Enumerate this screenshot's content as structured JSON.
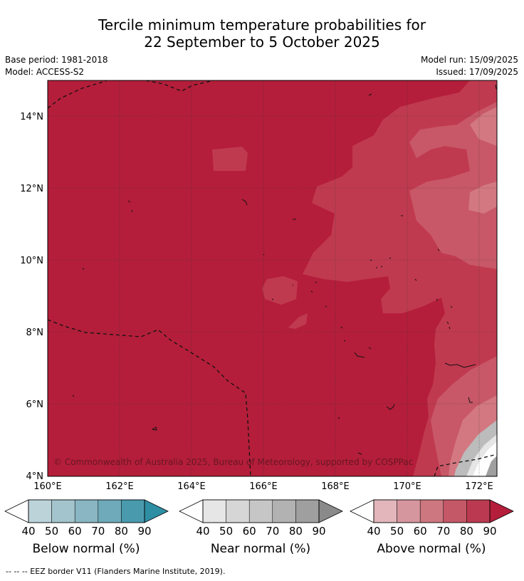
{
  "title": {
    "line1": "Tercile minimum temperature probabilities for",
    "line2": "22 September to 5 October 2025"
  },
  "meta": {
    "base_period": "Base period: 1981-2018",
    "model": "Model: ACCESS-S2",
    "model_run": "Model run: 15/09/2025",
    "issued": "Issued: 17/09/2025"
  },
  "map": {
    "lat_labels": [
      "14°N",
      "12°N",
      "10°N",
      "8°N",
      "6°N",
      "4°N"
    ],
    "lon_labels": [
      "160°E",
      "162°E",
      "164°E",
      "166°E",
      "168°E",
      "170°E",
      "172°E"
    ],
    "copyright": "© Commonwealth of Australia 2025, Bureau of Meteorology, supported by COSPPac",
    "colors": {
      "deep_red": "#b41e3a",
      "red_80": "#c03a4f",
      "red_70": "#c85867",
      "red_60": "#d37880"
    }
  },
  "colorbars": [
    {
      "name": "below",
      "label": "Below normal (%)",
      "ticks": [
        "40",
        "50",
        "60",
        "70",
        "80",
        "90"
      ],
      "colors": [
        "#bdd3da",
        "#a3c4cc",
        "#89b6c2",
        "#6eaab9",
        "#4a9aad",
        "#2e8ea3"
      ]
    },
    {
      "name": "near",
      "label": "Near normal (%)",
      "ticks": [
        "40",
        "50",
        "60",
        "70",
        "80",
        "90"
      ],
      "colors": [
        "#e6e6e6",
        "#d6d6d6",
        "#c6c6c6",
        "#b2b2b2",
        "#9f9f9f",
        "#8a8a8a"
      ]
    },
    {
      "name": "above",
      "label": "Above normal (%)",
      "ticks": [
        "40",
        "50",
        "60",
        "70",
        "80",
        "90"
      ],
      "colors": [
        "#e2b6bb",
        "#d6969d",
        "#cd7780",
        "#c45867",
        "#bb3a51",
        "#b41e3a"
      ]
    }
  ],
  "footer": "-- -- -- EEZ border V11 (Flanders Marine Institute, 2019)."
}
